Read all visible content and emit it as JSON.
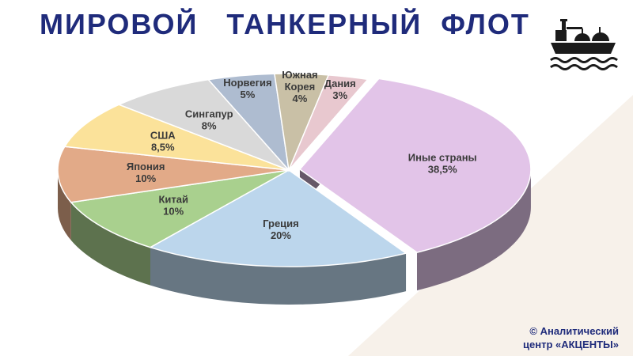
{
  "header": {
    "title": "МИРОВОЙ   ТАНКЕРНЫЙ  ФЛОТ"
  },
  "footer": {
    "copyright_line1": "©  Аналитический",
    "copyright_line2": "центр «АКЦЕНТЫ»"
  },
  "logo_icon": "tanker-ship-icon",
  "chart_data": {
    "type": "pie",
    "title": "МИРОВОЙ   ТАНКЕРНЫЙ  ФЛОТ",
    "unit": "%",
    "slices": [
      {
        "name": "Иные страны",
        "value": 38.5,
        "label": "38,5%",
        "color": "#e2c4e8",
        "exploded": true
      },
      {
        "name": "Греция",
        "value": 20,
        "label": "20%",
        "color": "#bcd6ec"
      },
      {
        "name": "Китай",
        "value": 10,
        "label": "10%",
        "color": "#a9d08e"
      },
      {
        "name": "Япония",
        "value": 10,
        "label": "10%",
        "color": "#e2aa88"
      },
      {
        "name": "США",
        "value": 8.5,
        "label": "8,5%",
        "color": "#fbe29a"
      },
      {
        "name": "Сингапур",
        "value": 8,
        "label": "8%",
        "color": "#d9d9d9"
      },
      {
        "name": "Норвегия",
        "value": 5,
        "label": "5%",
        "color": "#aebcd0"
      },
      {
        "name": "Южная Корея",
        "value": 4,
        "label": "4%",
        "color": "#c9c0a6"
      },
      {
        "name": "Дания",
        "value": 3,
        "label": "3%",
        "color": "#e8c8cf"
      }
    ]
  }
}
